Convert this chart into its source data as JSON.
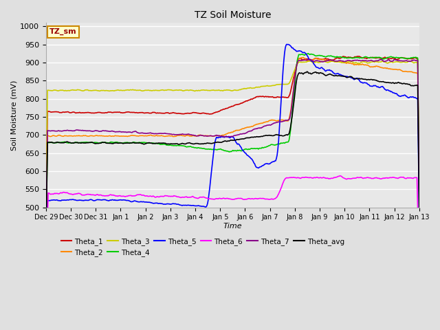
{
  "title": "TZ Soil Moisture",
  "xlabel": "Time",
  "ylabel": "Soil Moisture (mV)",
  "annotation": "TZ_sm",
  "ylim": [
    500,
    1010
  ],
  "yticks": [
    500,
    550,
    600,
    650,
    700,
    750,
    800,
    850,
    900,
    950,
    1000
  ],
  "xtick_labels": [
    "Dec 29",
    "Dec 30",
    "Dec 31",
    "Jan 1",
    "Jan 2",
    "Jan 3",
    "Jan 4",
    "Jan 5",
    "Jan 6",
    "Jan 7",
    "Jan 8",
    "Jan 9",
    "Jan 10",
    "Jan 11",
    "Jan 12",
    "Jan 13"
  ],
  "series_colors": {
    "Theta_1": "#cc0000",
    "Theta_2": "#ff8800",
    "Theta_3": "#cccc00",
    "Theta_4": "#00cc00",
    "Theta_5": "#0000ff",
    "Theta_6": "#ff00ff",
    "Theta_7": "#880088",
    "Theta_avg": "#000000"
  },
  "bg_color": "#e0e0e0",
  "plot_bg": "#e8e8e8",
  "grid_color": "#ffffff",
  "annotation_bg": "#ffffcc",
  "annotation_border": "#cc8800"
}
